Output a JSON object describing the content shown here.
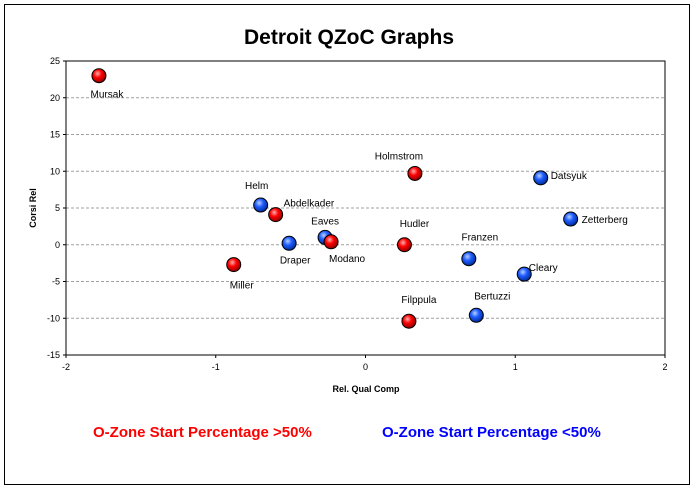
{
  "chart_data": {
    "type": "scatter",
    "title": "Detroit QZoC Graphs",
    "xlabel": "Rel. Qual Comp",
    "ylabel": "Corsi Rel",
    "xlim": [
      -2,
      2
    ],
    "ylim": [
      -15,
      25
    ],
    "xticks": [
      -2,
      -1,
      0,
      1,
      2
    ],
    "yticks": [
      25,
      20,
      15,
      10,
      5,
      0,
      -5,
      -10,
      -15
    ],
    "grid": "horizontal dashed",
    "legend": [
      {
        "label": "O-Zone Start Percentage >50%",
        "color": "#ff0000"
      },
      {
        "label": "O-Zone Start Percentage <50%",
        "color": "#0000ff"
      }
    ],
    "points": [
      {
        "name": "Mursak",
        "x": -1.78,
        "y": 23.0,
        "group": "red"
      },
      {
        "name": "Holmstrom",
        "x": 0.33,
        "y": 9.7,
        "group": "red"
      },
      {
        "name": "Datsyuk",
        "x": 1.17,
        "y": 9.1,
        "group": "blue"
      },
      {
        "name": "Helm",
        "x": -0.7,
        "y": 5.4,
        "group": "blue"
      },
      {
        "name": "Abdelkader",
        "x": -0.6,
        "y": 4.1,
        "group": "red"
      },
      {
        "name": "Zetterberg",
        "x": 1.37,
        "y": 3.5,
        "group": "blue"
      },
      {
        "name": "Eaves",
        "x": -0.27,
        "y": 1.0,
        "group": "blue"
      },
      {
        "name": "Modano",
        "x": -0.23,
        "y": 0.4,
        "group": "red"
      },
      {
        "name": "Draper",
        "x": -0.51,
        "y": 0.2,
        "group": "blue"
      },
      {
        "name": "Hudler",
        "x": 0.26,
        "y": 0.0,
        "group": "red"
      },
      {
        "name": "Franzen",
        "x": 0.69,
        "y": -1.9,
        "group": "blue"
      },
      {
        "name": "Miller",
        "x": -0.88,
        "y": -2.7,
        "group": "red"
      },
      {
        "name": "Cleary",
        "x": 1.06,
        "y": -4.0,
        "group": "blue"
      },
      {
        "name": "Bertuzzi",
        "x": 0.74,
        "y": -9.6,
        "group": "blue"
      },
      {
        "name": "Filppula",
        "x": 0.29,
        "y": -10.4,
        "group": "red"
      }
    ]
  },
  "colors": {
    "red": "#ff0000",
    "blue": "#1e5cff",
    "grid": "#a0a0a0"
  }
}
